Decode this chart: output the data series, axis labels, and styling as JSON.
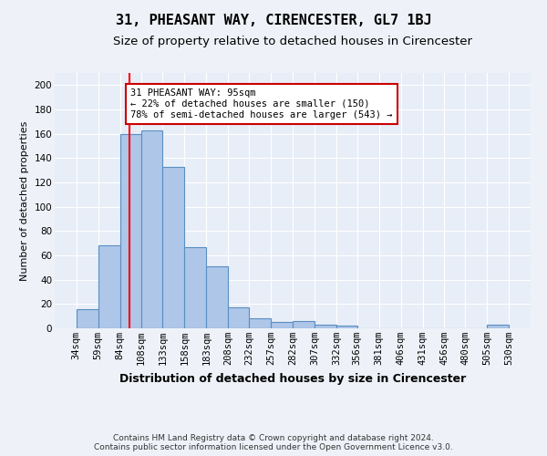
{
  "title": "31, PHEASANT WAY, CIRENCESTER, GL7 1BJ",
  "subtitle": "Size of property relative to detached houses in Cirencester",
  "xlabel": "Distribution of detached houses by size in Cirencester",
  "ylabel": "Number of detached properties",
  "footer_line1": "Contains HM Land Registry data © Crown copyright and database right 2024.",
  "footer_line2": "Contains public sector information licensed under the Open Government Licence v3.0.",
  "bar_edges": [
    34,
    59,
    84,
    108,
    133,
    158,
    183,
    208,
    232,
    257,
    282,
    307,
    332,
    356,
    381,
    406,
    431,
    456,
    480,
    505,
    530
  ],
  "bar_values": [
    16,
    68,
    160,
    163,
    133,
    67,
    51,
    17,
    8,
    5,
    6,
    3,
    2,
    0,
    0,
    0,
    0,
    0,
    0,
    3
  ],
  "bar_color": "#aec6e8",
  "bar_edgecolor": "#5a8fc3",
  "bar_linewidth": 0.8,
  "red_line_x": 95,
  "annotation_line1": "31 PHEASANT WAY: 95sqm",
  "annotation_line2": "← 22% of detached houses are smaller (150)",
  "annotation_line3": "78% of semi-detached houses are larger (543) →",
  "annotation_box_color": "#ffffff",
  "annotation_box_edgecolor": "#cc0000",
  "ylim": [
    0,
    210
  ],
  "yticks": [
    0,
    20,
    40,
    60,
    80,
    100,
    120,
    140,
    160,
    180,
    200
  ],
  "bg_color": "#e8eef7",
  "fig_bg_color": "#eef2f8",
  "grid_color": "#ffffff",
  "title_fontsize": 11,
  "subtitle_fontsize": 9.5,
  "xlabel_fontsize": 9,
  "ylabel_fontsize": 8,
  "tick_fontsize": 7.5,
  "annotation_fontsize": 7.5,
  "footer_fontsize": 6.5
}
